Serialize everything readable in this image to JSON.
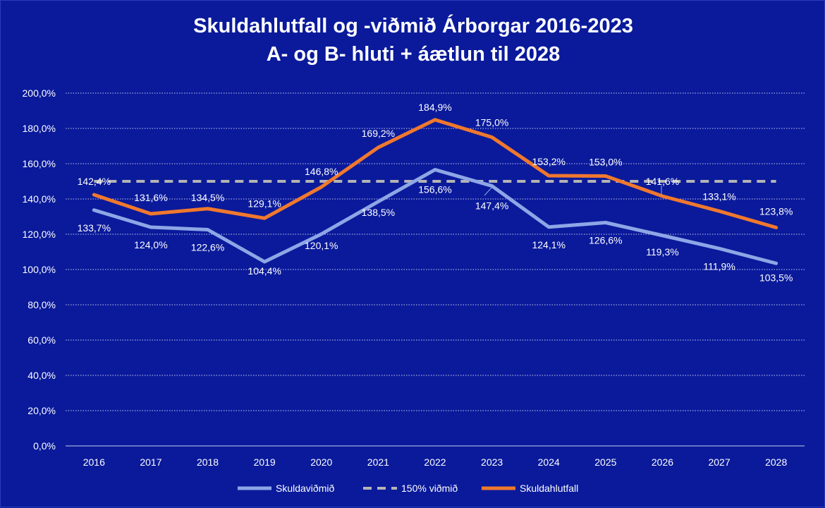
{
  "chart_data": {
    "type": "line",
    "title": "Skuldahlutfall og -viðmið Árborgar 2016-2023",
    "subtitle": "A- og B- hluti + áætlun til 2028",
    "categories": [
      "2016",
      "2017",
      "2018",
      "2019",
      "2020",
      "2021",
      "2022",
      "2023",
      "2024",
      "2025",
      "2026",
      "2027",
      "2028"
    ],
    "ylim": [
      0,
      200
    ],
    "yticks": [
      "0,0%",
      "20,0%",
      "40,0%",
      "60,0%",
      "80,0%",
      "100,0%",
      "120,0%",
      "140,0%",
      "160,0%",
      "180,0%",
      "200,0%"
    ],
    "grid": true,
    "legend_position": "bottom",
    "series": [
      {
        "name": "Skuldaviðmið",
        "color": "#8fa6e6",
        "style": "solid",
        "values": [
          133.7,
          124.0,
          122.6,
          104.4,
          120.1,
          138.5,
          156.6,
          147.4,
          124.1,
          126.6,
          119.3,
          111.9,
          103.5
        ],
        "labels": [
          "133,7%",
          "124,0%",
          "122,6%",
          "104,4%",
          "120,1%",
          "138,5%",
          "156,6%",
          "147,4%",
          "124,1%",
          "126,6%",
          "119,3%",
          "111,9%",
          "103,5%"
        ]
      },
      {
        "name": "150% viðmið",
        "color": "#b4b4b4",
        "style": "dashed",
        "values": [
          150,
          150,
          150,
          150,
          150,
          150,
          150,
          150,
          150,
          150,
          150,
          150,
          150
        ]
      },
      {
        "name": "Skuldahlutfall",
        "color": "#f0782d",
        "style": "solid",
        "values": [
          142.4,
          131.6,
          134.5,
          129.1,
          146.8,
          169.2,
          184.9,
          175.0,
          153.2,
          153.0,
          141.6,
          133.1,
          123.8
        ],
        "labels": [
          "142,4%",
          "131,6%",
          "134,5%",
          "129,1%",
          "146,8%",
          "169,2%",
          "184,9%",
          "175,0%",
          "153,2%",
          "153,0%",
          "141,6%",
          "133,1%",
          "123,8%"
        ]
      }
    ]
  }
}
